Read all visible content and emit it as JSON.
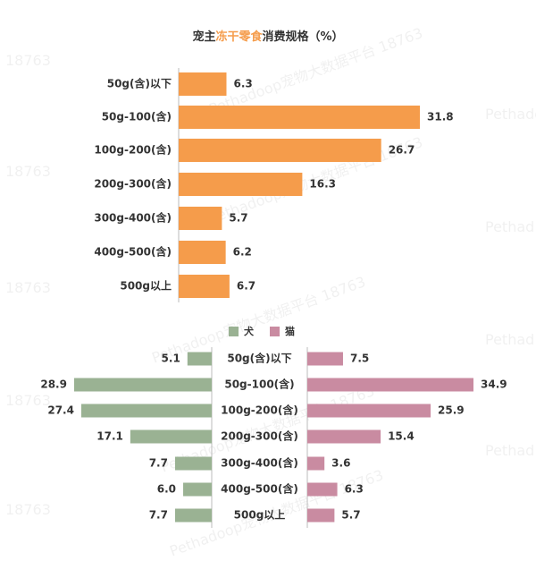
{
  "title": {
    "prefix": "宠主",
    "highlight": "冻干零食",
    "suffix": "消费规格（%）"
  },
  "colors": {
    "orange": "#F59C4B",
    "dog": "#9AB293",
    "cat": "#C98BA1",
    "title_highlight": "#F59C4B",
    "axis": "#BBBBBB",
    "text": "#333333"
  },
  "watermark": {
    "text_main": "Pethadoop宠物大数据平台 18763",
    "text_num": "18763",
    "text_brand": "Pethad",
    "text_brand_full": "Pethadoop"
  },
  "chart_data": [
    {
      "type": "bar",
      "orientation": "horizontal",
      "categories": [
        "50g(含)以下",
        "50g-100(含)",
        "100g-200(含)",
        "200g-300(含)",
        "300g-400(含)",
        "400g-500(含)",
        "500g以上"
      ],
      "series": [
        {
          "values": [
            6.3,
            31.8,
            26.7,
            16.3,
            5.7,
            6.2,
            6.7
          ]
        }
      ],
      "value_labels": [
        "6.3",
        "31.8",
        "26.7",
        "16.3",
        "5.7",
        "6.2",
        "6.7"
      ],
      "xlim": [
        0,
        35
      ],
      "grid": false
    },
    {
      "type": "bar",
      "orientation": "horizontal-butterfly",
      "categories": [
        "50g(含)以下",
        "50g-100(含)",
        "100g-200(含)",
        "200g-300(含)",
        "300g-400(含)",
        "400g-500(含)",
        "500g以上"
      ],
      "legend": {
        "placement": "top-center"
      },
      "series": [
        {
          "name": "犬",
          "values": [
            5.1,
            28.9,
            27.4,
            17.1,
            7.7,
            6.0,
            7.7
          ],
          "value_labels": [
            "5.1",
            "28.9",
            "27.4",
            "17.1",
            "7.7",
            "6.0",
            "7.7"
          ]
        },
        {
          "name": "猫",
          "values": [
            7.5,
            34.9,
            25.9,
            15.4,
            3.6,
            6.3,
            5.7
          ],
          "value_labels": [
            "7.5",
            "34.9",
            "25.9",
            "15.4",
            "3.6",
            "6.3",
            "5.7"
          ]
        }
      ],
      "xlim": [
        0,
        35
      ],
      "grid": false
    }
  ]
}
